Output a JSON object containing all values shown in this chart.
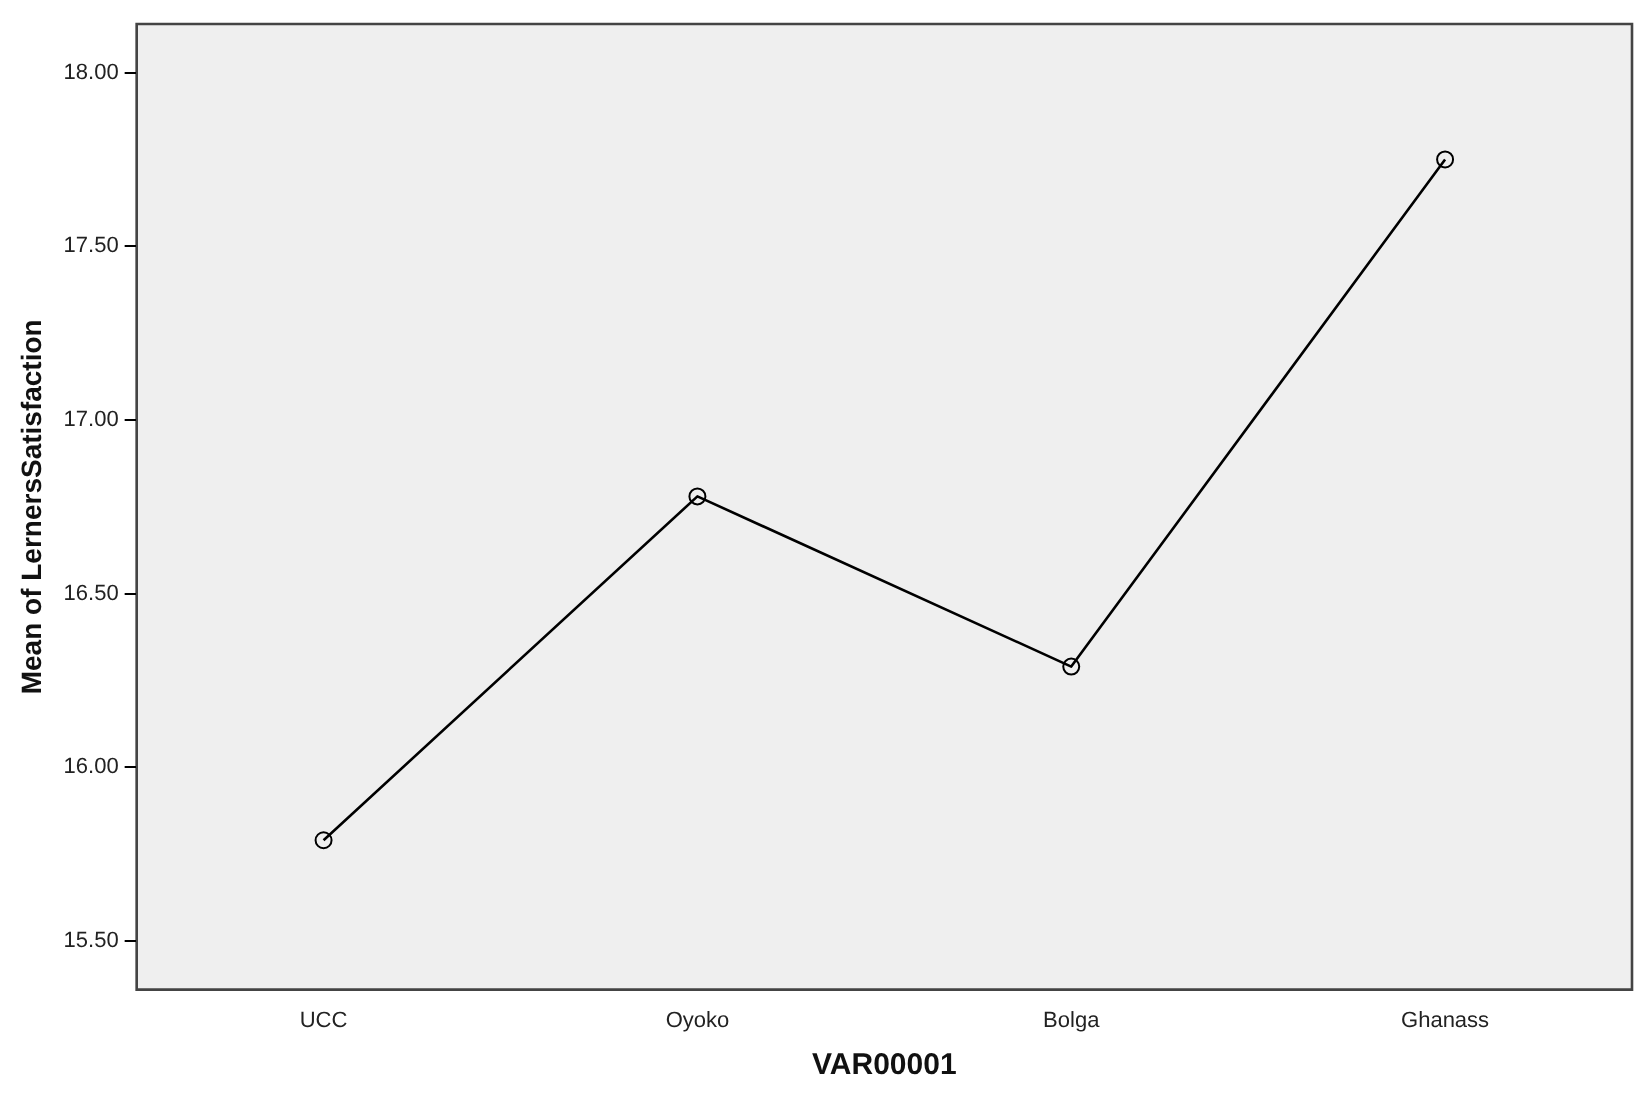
{
  "chart_data": {
    "type": "line",
    "xlabel": "VAR00001",
    "ylabel": "Mean of LernersSatisfaction",
    "categories": [
      "UCC",
      "Oyoko",
      "Bolga",
      "Ghanass"
    ],
    "values": [
      15.79,
      16.78,
      16.29,
      17.75
    ],
    "color": "#000000",
    "ylim": [
      15.36,
      18.14
    ],
    "yticks": [
      {
        "value": 15.5,
        "label": "15.50"
      },
      {
        "value": 16,
        "label": "16.00"
      },
      {
        "value": 16.5,
        "label": "16.50"
      },
      {
        "value": 17,
        "label": "17.00"
      },
      {
        "value": 17.5,
        "label": "17.50"
      },
      {
        "value": 18,
        "label": "18.00"
      }
    ],
    "grid": false,
    "legend": false,
    "marker": "circle",
    "line_style": "solid"
  }
}
